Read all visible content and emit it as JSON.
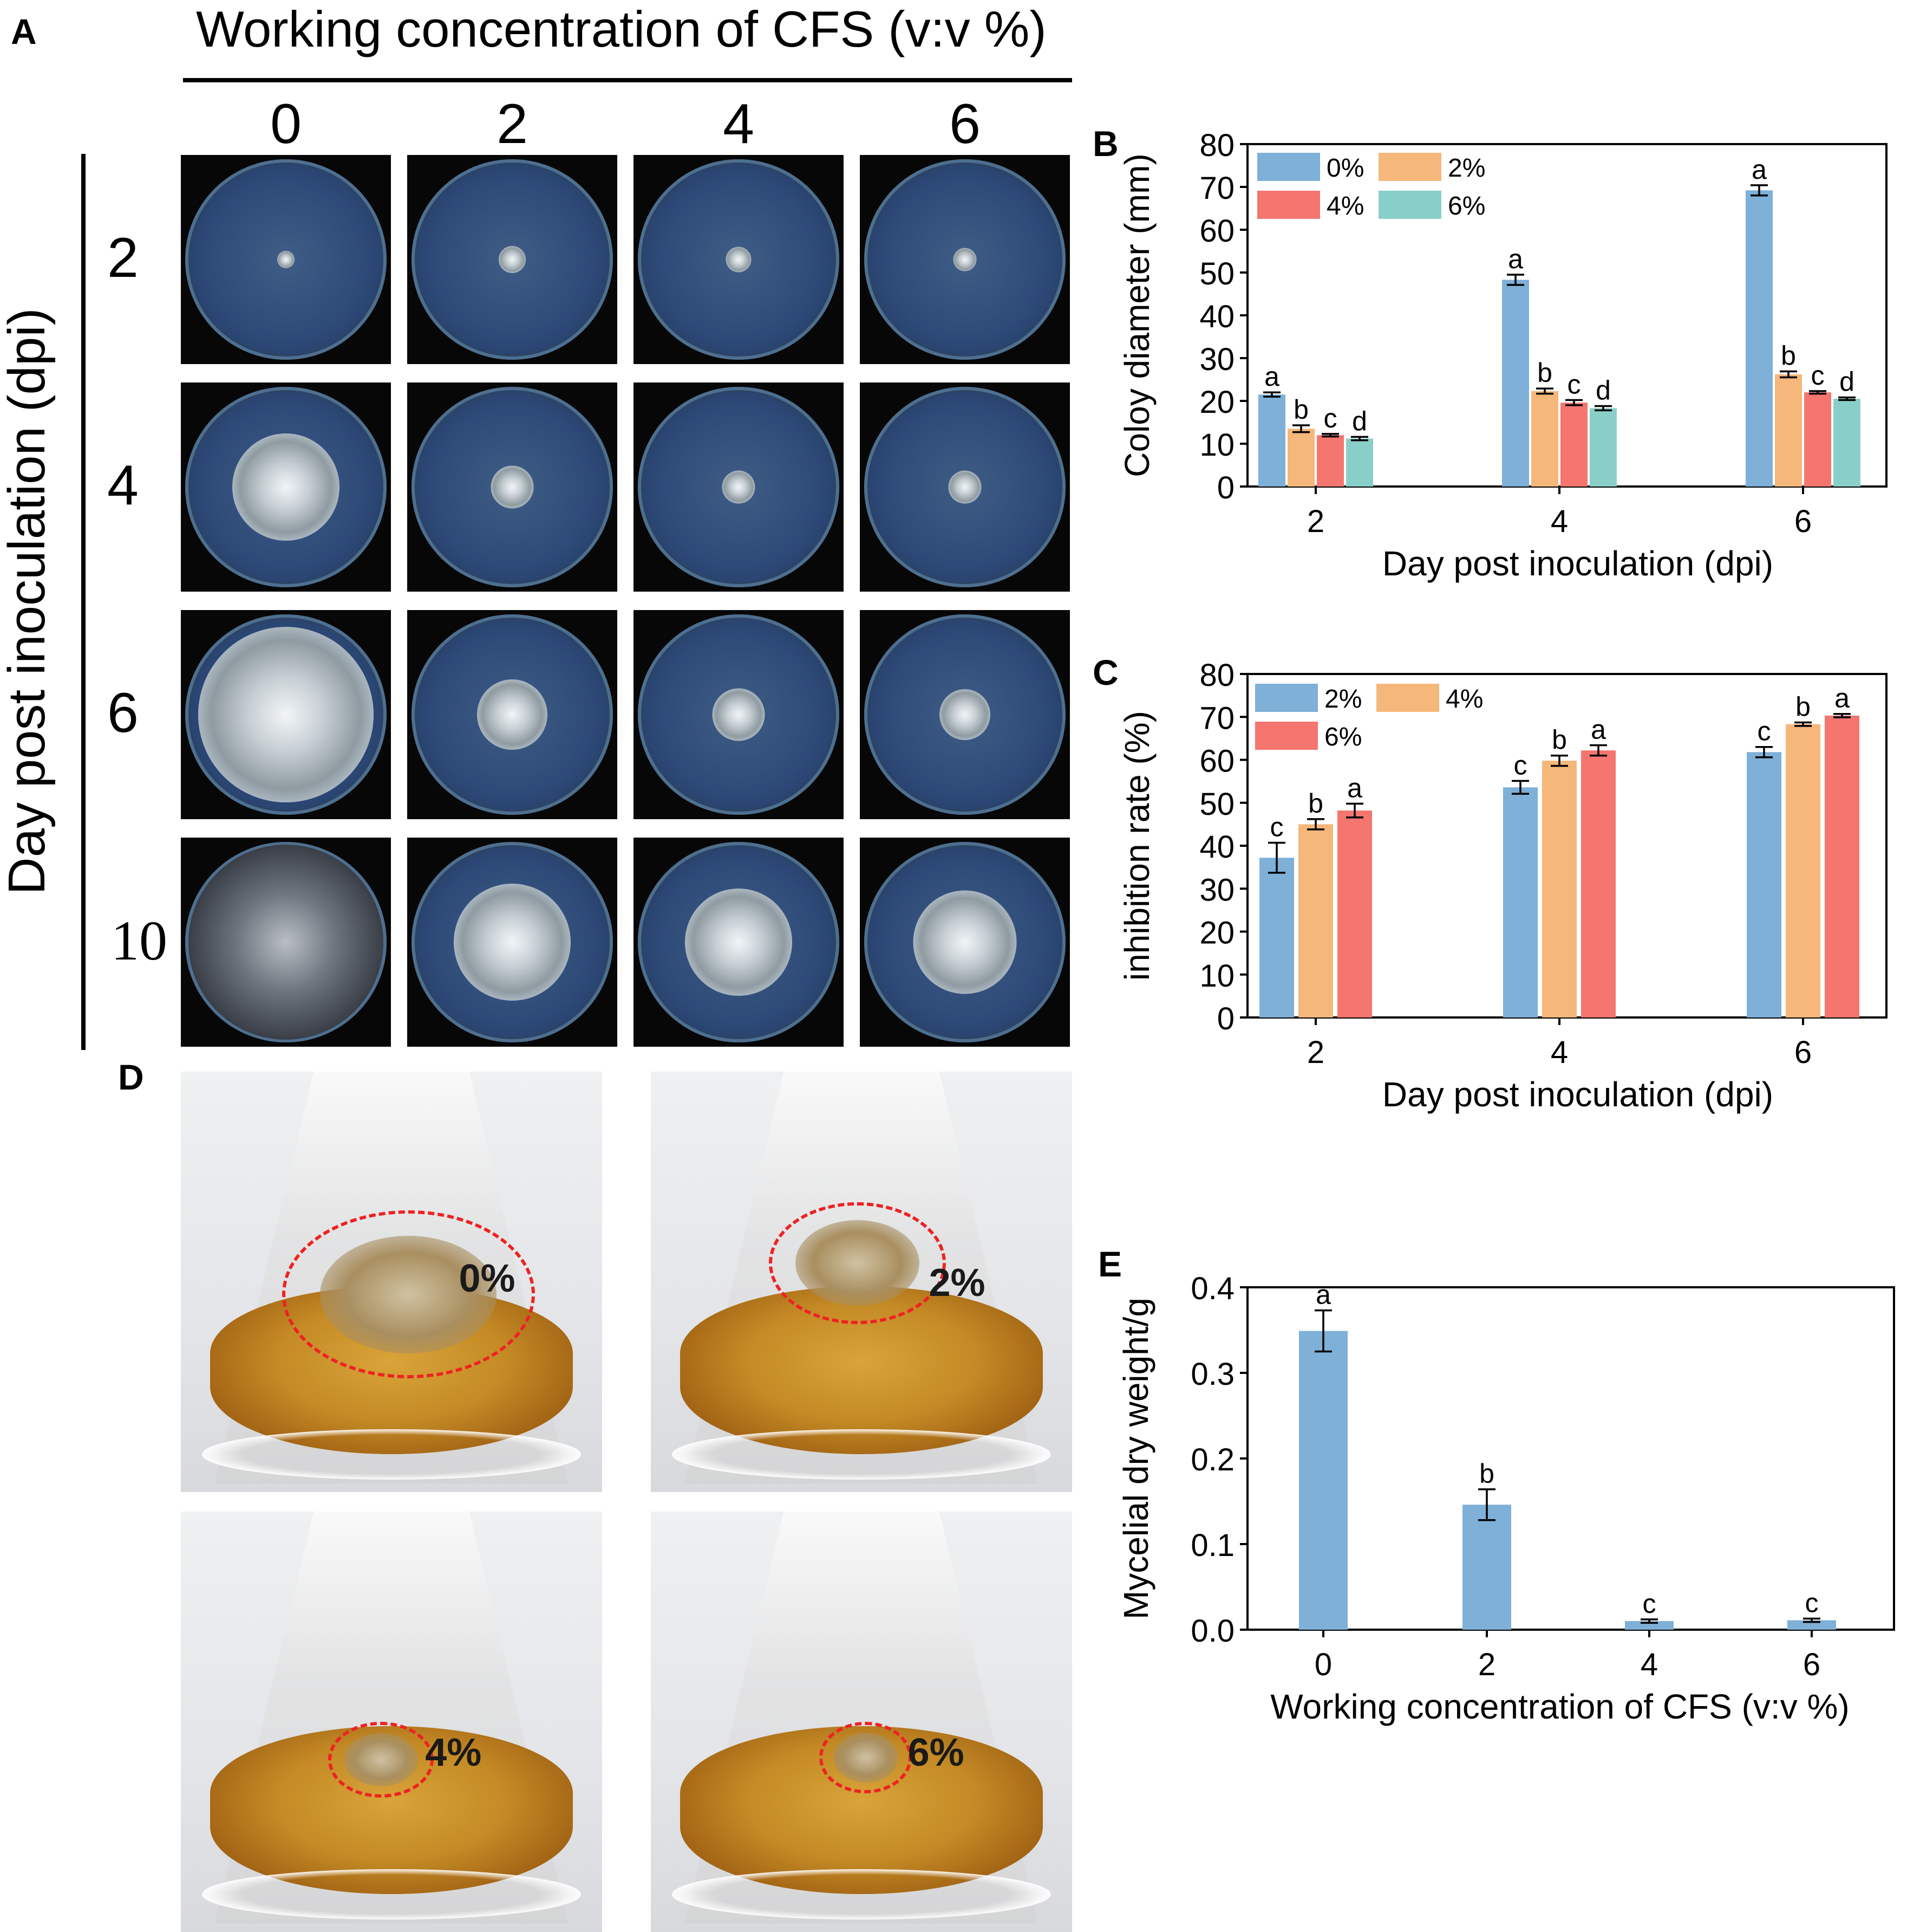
{
  "panel_a": {
    "letter": "A",
    "heading": "Working concentration of CFS  (v:v %)",
    "side_label": "Day post inoculation (dpi)",
    "columns": [
      "0",
      "2",
      "4",
      "6"
    ],
    "rows": [
      "2",
      "4",
      "6",
      "10"
    ],
    "colony_size_relative": [
      [
        0.09,
        0.14,
        0.13,
        0.12
      ],
      [
        0.55,
        0.22,
        0.17,
        0.17
      ],
      [
        0.9,
        0.36,
        0.27,
        0.26
      ],
      [
        1.0,
        0.6,
        0.55,
        0.53
      ]
    ]
  },
  "panel_d": {
    "letter": "D",
    "flasks": [
      "0%",
      "2%",
      "4%",
      "6%"
    ]
  },
  "colors": {
    "c0": "#7eb0d8",
    "c2": "#f6b77a",
    "c4": "#f4766f",
    "c6": "#89cfc9"
  },
  "chart_data": [
    {
      "panel": "B",
      "type": "bar",
      "title": "",
      "xlabel": "Day post inoculation (dpi)",
      "ylabel": "Coloy diameter (mm)",
      "ylim": [
        0,
        80
      ],
      "yticks": [
        "0",
        "10",
        "20",
        "30",
        "40",
        "50",
        "60",
        "70",
        "80"
      ],
      "categories": [
        "2",
        "4",
        "6"
      ],
      "legend_position": "top-left",
      "series": [
        {
          "name": "0%",
          "values": [
            21.5,
            48.3,
            69.2
          ],
          "errors": [
            0.5,
            1.2,
            1.2
          ],
          "letters": [
            "a",
            "a",
            "a"
          ]
        },
        {
          "name": "2%",
          "values": [
            13.5,
            22.3,
            26.2
          ],
          "errors": [
            0.8,
            0.6,
            0.7
          ],
          "letters": [
            "b",
            "b",
            "b"
          ]
        },
        {
          "name": "4%",
          "values": [
            12.0,
            19.6,
            22.0
          ],
          "errors": [
            0.3,
            0.6,
            0.3
          ],
          "letters": [
            "c",
            "c",
            "c"
          ]
        },
        {
          "name": "6%",
          "values": [
            11.2,
            18.3,
            20.5
          ],
          "errors": [
            0.4,
            0.5,
            0.3
          ],
          "letters": [
            "d",
            "d",
            "d"
          ]
        }
      ]
    },
    {
      "panel": "C",
      "type": "bar",
      "title": "",
      "xlabel": "Day post inoculation (dpi)",
      "ylabel": "inhibition rate (%)",
      "ylim": [
        0,
        80
      ],
      "yticks": [
        "0",
        "10",
        "20",
        "30",
        "40",
        "50",
        "60",
        "70",
        "80"
      ],
      "categories": [
        "2",
        "4",
        "6"
      ],
      "legend_position": "top-left",
      "series": [
        {
          "name": "2%",
          "values": [
            37.2,
            53.6,
            61.8
          ],
          "errors": [
            3.5,
            1.5,
            1.2
          ],
          "letters": [
            "c",
            "c",
            "c"
          ]
        },
        {
          "name": "4%",
          "values": [
            45.0,
            59.8,
            68.3
          ],
          "errors": [
            1.2,
            1.2,
            0.4
          ],
          "letters": [
            "b",
            "b",
            "b"
          ]
        },
        {
          "name": "6%",
          "values": [
            48.2,
            62.2,
            70.3
          ],
          "errors": [
            1.6,
            1.2,
            0.4
          ],
          "letters": [
            "a",
            "a",
            "a"
          ]
        }
      ]
    },
    {
      "panel": "E",
      "type": "bar",
      "title": "",
      "xlabel": "Working concentration of CFS (v:v  %)",
      "ylabel": "Mycelial dry weight/g",
      "ylim": [
        0,
        0.4
      ],
      "yticks": [
        "0.0",
        "0.1",
        "0.2",
        "0.3",
        "0.4"
      ],
      "categories": [
        "0",
        "2",
        "4",
        "6"
      ],
      "series": [
        {
          "name": "",
          "values": [
            0.349,
            0.146,
            0.01,
            0.011
          ],
          "errors": [
            0.024,
            0.018,
            0.002,
            0.002
          ],
          "letters": [
            "a",
            "b",
            "c",
            "c"
          ]
        }
      ]
    }
  ]
}
